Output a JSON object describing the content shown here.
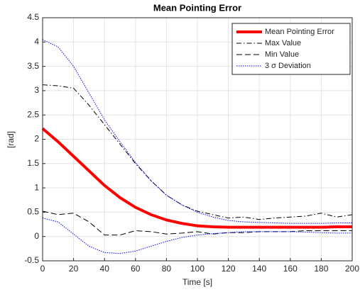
{
  "chart_data": {
    "type": "line",
    "title": "Mean Pointing Error",
    "x_label": "Time [s]",
    "y_label": "[rad]",
    "x": [
      0,
      10,
      20,
      30,
      40,
      50,
      60,
      70,
      80,
      90,
      100,
      110,
      120,
      130,
      140,
      150,
      160,
      170,
      180,
      190,
      200
    ],
    "series": [
      {
        "name": "Mean Pointing Error",
        "color": "#ff0000",
        "dash": "solid",
        "width": 4,
        "values": [
          2.22,
          1.95,
          1.65,
          1.35,
          1.05,
          0.8,
          0.6,
          0.45,
          0.34,
          0.27,
          0.22,
          0.2,
          0.19,
          0.19,
          0.19,
          0.19,
          0.19,
          0.19,
          0.19,
          0.2,
          0.2
        ]
      },
      {
        "name": "Max Value",
        "color": "#000000",
        "dash": "dashdot",
        "width": 1,
        "values": [
          3.12,
          3.1,
          3.05,
          2.7,
          2.3,
          1.9,
          1.5,
          1.15,
          0.85,
          0.65,
          0.52,
          0.45,
          0.38,
          0.4,
          0.35,
          0.38,
          0.4,
          0.42,
          0.48,
          0.4,
          0.45
        ]
      },
      {
        "name": "Min Value",
        "color": "#000000",
        "dash": "dashed",
        "width": 1,
        "values": [
          0.52,
          0.45,
          0.48,
          0.3,
          0.03,
          0.03,
          0.12,
          0.1,
          0.05,
          0.07,
          0.1,
          0.05,
          0.08,
          0.08,
          0.1,
          0.1,
          0.1,
          0.12,
          0.12,
          0.12,
          0.12
        ]
      },
      {
        "name": "3 σ Deviation",
        "color": "#0000ff",
        "dash": "dotted",
        "width": 1,
        "values": [
          4.05,
          3.9,
          3.5,
          2.95,
          2.4,
          1.95,
          1.52,
          1.15,
          0.85,
          0.65,
          0.5,
          0.4,
          0.33,
          0.3,
          0.29,
          0.28,
          0.27,
          0.27,
          0.27,
          0.28,
          0.28
        ]
      },
      {
        "color": "#0000ff",
        "dash": "dotted",
        "width": 1,
        "values": [
          0.38,
          0.3,
          0.05,
          -0.2,
          -0.33,
          -0.35,
          -0.3,
          -0.2,
          -0.1,
          -0.02,
          0.03,
          0.06,
          0.08,
          0.1,
          0.1,
          0.1,
          0.1,
          0.09,
          0.08,
          0.07,
          0.07
        ]
      }
    ],
    "xlim": [
      0,
      200
    ],
    "xticks": [
      0,
      20,
      40,
      60,
      80,
      100,
      120,
      140,
      160,
      180,
      200
    ],
    "ylim": [
      -0.5,
      4.5
    ],
    "yticks": [
      -0.5,
      0,
      0.5,
      1,
      1.5,
      2,
      2.5,
      3,
      3.5,
      4,
      4.5
    ],
    "grid": true,
    "legend": "top-right"
  }
}
